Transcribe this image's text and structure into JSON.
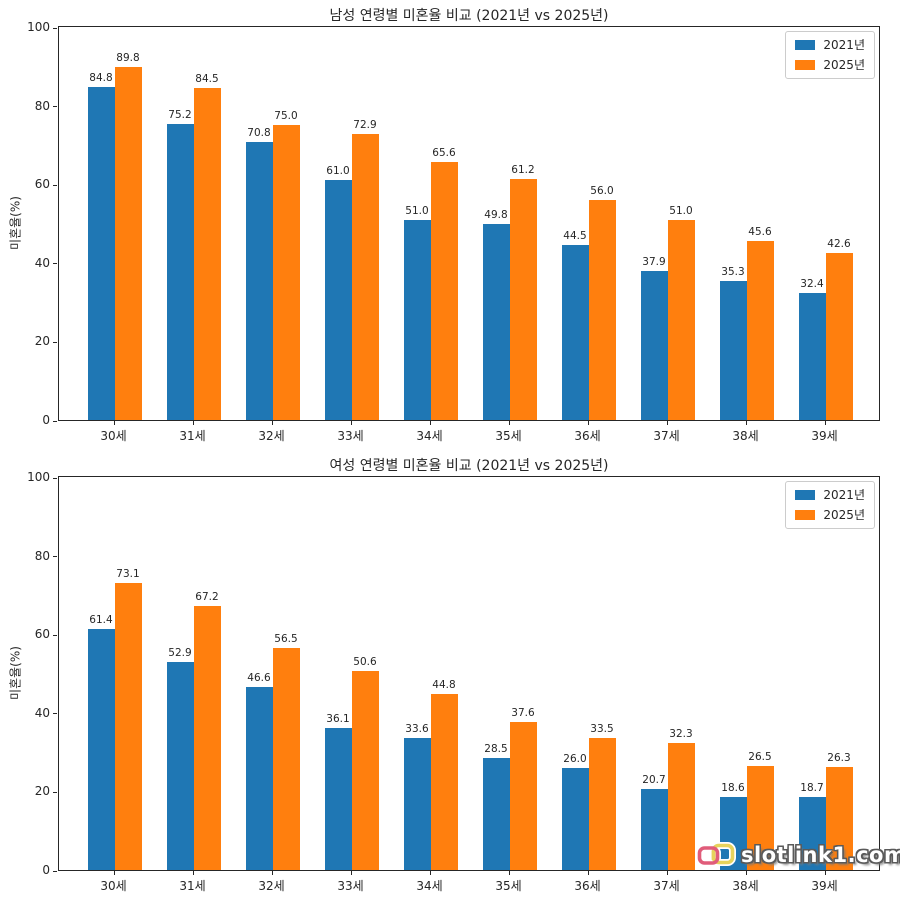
{
  "figure": {
    "background": "#ffffff"
  },
  "chart_data": [
    {
      "type": "bar",
      "title": "남성 연령별 미혼율 비교 (2021년 vs 2025년)",
      "xlabel": "",
      "ylabel": "미혼율(%)",
      "categories": [
        "30세",
        "31세",
        "32세",
        "33세",
        "34세",
        "35세",
        "36세",
        "37세",
        "38세",
        "39세"
      ],
      "series": [
        {
          "name": "2021년",
          "color": "#1f77b4",
          "values": [
            84.8,
            75.2,
            70.8,
            61.0,
            51.0,
            49.8,
            44.5,
            37.9,
            35.3,
            32.4
          ]
        },
        {
          "name": "2025년",
          "color": "#ff7f0e",
          "values": [
            89.8,
            84.5,
            75.0,
            72.9,
            65.6,
            61.2,
            56.0,
            51.0,
            45.6,
            42.6
          ]
        }
      ],
      "ylim": [
        0,
        100
      ],
      "yticks": [
        0,
        20,
        40,
        60,
        80,
        100
      ],
      "grid": false,
      "legend_position": "upper right",
      "value_labels": true
    },
    {
      "type": "bar",
      "title": "여성 연령별 미혼율 비교 (2021년 vs 2025년)",
      "xlabel": "",
      "ylabel": "미혼율(%)",
      "categories": [
        "30세",
        "31세",
        "32세",
        "33세",
        "34세",
        "35세",
        "36세",
        "37세",
        "38세",
        "39세"
      ],
      "series": [
        {
          "name": "2021년",
          "color": "#1f77b4",
          "values": [
            61.4,
            52.9,
            46.6,
            36.1,
            33.6,
            28.5,
            26.0,
            20.7,
            18.6,
            18.7
          ]
        },
        {
          "name": "2025년",
          "color": "#ff7f0e",
          "values": [
            73.1,
            67.2,
            56.5,
            50.6,
            44.8,
            37.6,
            33.5,
            32.3,
            26.5,
            26.3
          ]
        }
      ],
      "ylim": [
        0,
        100
      ],
      "yticks": [
        0,
        20,
        40,
        60,
        80,
        100
      ],
      "grid": false,
      "legend_position": "upper right",
      "value_labels": true
    }
  ],
  "watermark": {
    "text": "slotlink1.com",
    "icon": "link-icon",
    "icon_colors": {
      "left_link": "#e05c7a",
      "right_link": "#e6d35c"
    },
    "text_color": "#ffffff",
    "outline_color": "#5a5a5a"
  }
}
